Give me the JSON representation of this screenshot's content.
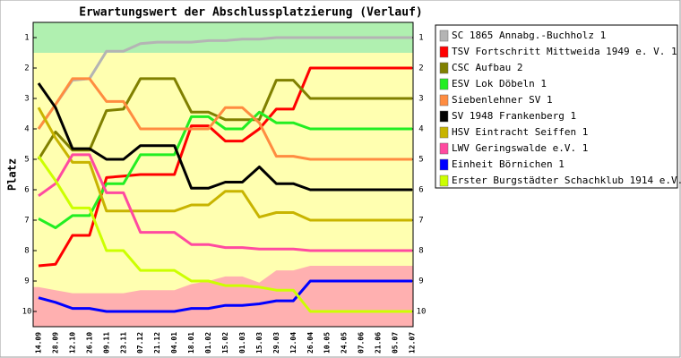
{
  "chart_data": {
    "type": "line",
    "title": "Erwartungswert der Abschlussplatzierung (Verlauf)",
    "y_label": "Platz",
    "categories": [
      "14.09",
      "28.09",
      "12.10",
      "26.10",
      "09.11",
      "23.11",
      "07.12",
      "21.12",
      "04.01",
      "18.01",
      "01.02",
      "15.02",
      "01.03",
      "15.03",
      "29.03",
      "12.04",
      "26.04",
      "10.05",
      "24.05",
      "07.06",
      "21.06",
      "05.07",
      "12.07"
    ],
    "ylim": [
      10.5,
      0.5
    ],
    "yticks": [
      1,
      2,
      3,
      4,
      5,
      6,
      7,
      8,
      9,
      10
    ],
    "background_color": "#ffffb0",
    "upper_zone": {
      "color": "#b0f0b0",
      "values": [
        1.5,
        1.5,
        1.5,
        1.5,
        1.5,
        1.5,
        1.5,
        1.5,
        1.5,
        1.5,
        1.5,
        1.5,
        1.5,
        1.5,
        1.5,
        1.5,
        1.5,
        1.5,
        1.5,
        1.5,
        1.5,
        1.5,
        1.5
      ]
    },
    "lower_zone": {
      "color": "#ffb0b0",
      "values": [
        9.2,
        9.3,
        9.4,
        9.4,
        9.4,
        9.4,
        9.3,
        9.3,
        9.3,
        9.1,
        9.0,
        8.85,
        8.85,
        9.05,
        8.65,
        8.65,
        8.5,
        8.5,
        8.5,
        8.5,
        8.5,
        8.5,
        8.5
      ]
    },
    "series": [
      {
        "name": "SC 1865 Annabg.-Buchholz 1",
        "color": "#b4b4b4",
        "values": [
          4.0,
          3.2,
          2.4,
          2.35,
          1.45,
          1.45,
          1.2,
          1.15,
          1.15,
          1.15,
          1.1,
          1.1,
          1.05,
          1.05,
          1.0,
          1.0,
          1.0,
          1.0,
          1.0,
          1.0,
          1.0,
          1.0,
          1.0
        ]
      },
      {
        "name": "TSV Fortschritt Mittweida 1949 e. V. 1",
        "color": "#ff0000",
        "values": [
          8.5,
          8.45,
          7.5,
          7.5,
          5.6,
          5.55,
          5.5,
          5.5,
          5.5,
          3.9,
          3.9,
          4.4,
          4.4,
          4.0,
          3.35,
          3.35,
          2.0,
          2.0,
          2.0,
          2.0,
          2.0,
          2.0,
          2.0
        ]
      },
      {
        "name": "CSC Aufbau 2",
        "color": "#808000",
        "values": [
          5.0,
          4.1,
          4.7,
          4.7,
          3.4,
          3.35,
          2.35,
          2.35,
          2.35,
          3.45,
          3.45,
          3.7,
          3.7,
          3.7,
          2.4,
          2.4,
          3.0,
          3.0,
          3.0,
          3.0,
          3.0,
          3.0,
          3.0
        ]
      },
      {
        "name": "ESV Lok Döbeln 1",
        "color": "#22ee22",
        "values": [
          6.95,
          7.25,
          6.85,
          6.85,
          5.8,
          5.8,
          4.85,
          4.85,
          4.85,
          3.6,
          3.6,
          4.0,
          4.0,
          3.45,
          3.8,
          3.8,
          4.0,
          4.0,
          4.0,
          4.0,
          4.0,
          4.0,
          4.0
        ]
      },
      {
        "name": "Siebenlehner SV 1",
        "color": "#ff8c40",
        "values": [
          4.0,
          3.2,
          2.35,
          2.35,
          3.1,
          3.1,
          4.0,
          4.0,
          4.0,
          4.0,
          4.0,
          3.3,
          3.3,
          3.8,
          4.9,
          4.9,
          5.0,
          5.0,
          5.0,
          5.0,
          5.0,
          5.0,
          5.0
        ]
      },
      {
        "name": "SV 1948 Frankenberg 1",
        "color": "#000000",
        "values": [
          2.5,
          3.3,
          4.65,
          4.65,
          5.0,
          5.0,
          4.55,
          4.55,
          4.55,
          5.95,
          5.95,
          5.75,
          5.75,
          5.25,
          5.8,
          5.8,
          6.0,
          6.0,
          6.0,
          6.0,
          6.0,
          6.0,
          6.0
        ]
      },
      {
        "name": "HSV Eintracht Seiffen 1",
        "color": "#c8b400",
        "values": [
          3.3,
          4.3,
          5.1,
          5.1,
          6.7,
          6.7,
          6.7,
          6.7,
          6.7,
          6.5,
          6.5,
          6.05,
          6.05,
          6.9,
          6.75,
          6.75,
          7.0,
          7.0,
          7.0,
          7.0,
          7.0,
          7.0,
          7.0
        ]
      },
      {
        "name": "LWV Geringswalde e.V. 1",
        "color": "#ff4aa0",
        "values": [
          6.2,
          5.8,
          4.85,
          4.85,
          6.1,
          6.1,
          7.4,
          7.4,
          7.4,
          7.8,
          7.8,
          7.9,
          7.9,
          7.95,
          7.95,
          7.95,
          8.0,
          8.0,
          8.0,
          8.0,
          8.0,
          8.0,
          8.0
        ]
      },
      {
        "name": "Einheit Börnichen 1",
        "color": "#0000ff",
        "values": [
          9.55,
          9.7,
          9.9,
          9.9,
          10.0,
          10.0,
          10.0,
          10.0,
          10.0,
          9.9,
          9.9,
          9.8,
          9.8,
          9.75,
          9.65,
          9.65,
          9.0,
          9.0,
          9.0,
          9.0,
          9.0,
          9.0,
          9.0
        ]
      },
      {
        "name": "Erster Burgstädter Schachklub 1914 e.V. 1",
        "color": "#ccff00",
        "values": [
          4.9,
          5.7,
          6.6,
          6.6,
          8.0,
          8.0,
          8.65,
          8.65,
          8.65,
          9.0,
          9.0,
          9.15,
          9.15,
          9.2,
          9.3,
          9.3,
          10.0,
          10.0,
          10.0,
          10.0,
          10.0,
          10.0,
          10.0
        ]
      }
    ]
  }
}
